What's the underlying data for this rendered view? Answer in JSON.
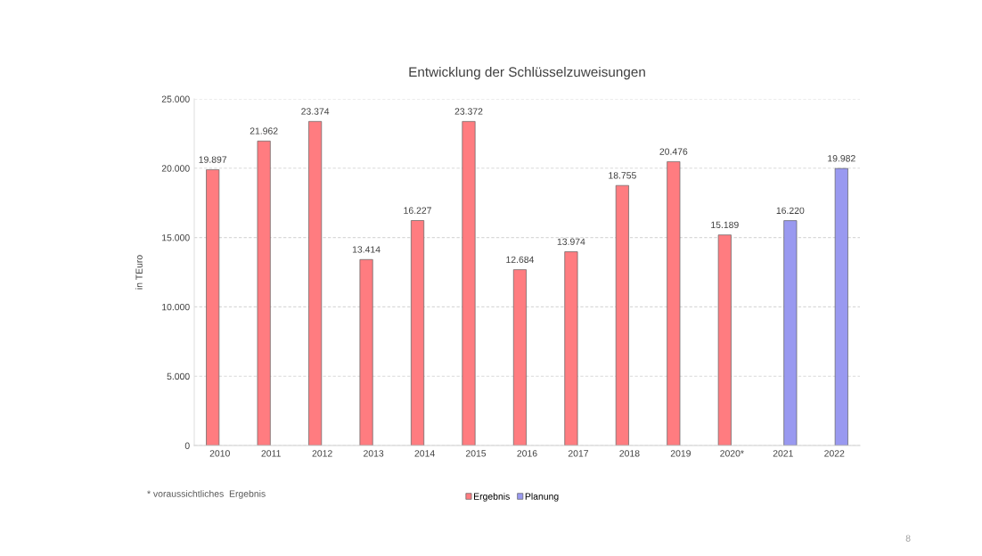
{
  "chart_data": {
    "type": "bar",
    "title": "Entwicklung der Schlüsselzuweisungen",
    "ylabel": "in TEuro",
    "categories": [
      "2010",
      "2011",
      "2012",
      "2013",
      "2014",
      "2015",
      "2016",
      "2017",
      "2018",
      "2019",
      "2020*",
      "2021",
      "2022"
    ],
    "series": [
      {
        "name": "Ergebnis",
        "color": "#ff7c80",
        "values": [
          19897,
          21962,
          23374,
          13414,
          16227,
          23372,
          12684,
          13974,
          18755,
          20476,
          15189,
          null,
          null
        ],
        "value_labels": [
          "19.897",
          "21.962",
          "23.374",
          "13.414",
          "16.227",
          "23.372",
          "12.684",
          "13.974",
          "18.755",
          "20.476",
          "15.189",
          null,
          null
        ]
      },
      {
        "name": "Planung",
        "color": "#9999f0",
        "values": [
          null,
          null,
          null,
          null,
          null,
          null,
          null,
          null,
          null,
          null,
          null,
          16220,
          19982
        ],
        "value_labels": [
          null,
          null,
          null,
          null,
          null,
          null,
          null,
          null,
          null,
          null,
          null,
          "16.220",
          "19.982"
        ]
      }
    ],
    "ylim": [
      0,
      25000
    ],
    "yticks": [
      0,
      {
        "value": 5000,
        "label": "5.000"
      },
      {
        "value": 10000,
        "label": "10.000"
      },
      {
        "value": 15000,
        "label": "15.000"
      },
      {
        "value": 20000,
        "label": "20.000"
      },
      {
        "value": 25000,
        "label": "25.000"
      }
    ],
    "grid": "y",
    "legend": "bottom",
    "annotations": [
      "* voraussichtliches  Ergebnis",
      "8"
    ]
  }
}
